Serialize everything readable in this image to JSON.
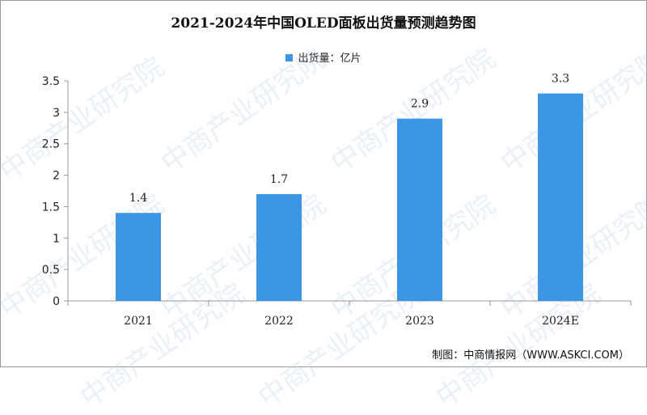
{
  "title": "2021-2024年中国OLED面板出货量预测趋势图",
  "source": "制图：中商情报网（WWW.ASKCI.COM）",
  "watermark": "中商产业研究院",
  "colors": {
    "bar": "#3d95e6",
    "axis": "#999999"
  },
  "chart_data": {
    "type": "bar",
    "title": "2021-2024年中国OLED面板出货量预测趋势图",
    "xlabel": "",
    "ylabel": "",
    "categories": [
      "2021",
      "2022",
      "2023",
      "2024E"
    ],
    "series": [
      {
        "name": "出货量：亿片",
        "values": [
          1.4,
          1.7,
          2.9,
          3.3
        ]
      }
    ],
    "value_labels": [
      "1.4",
      "1.7",
      "2.9",
      "3.3"
    ],
    "ylim": [
      0,
      3.5
    ],
    "yticks": [
      "0",
      "0.5",
      "1",
      "1.5",
      "2",
      "2.5",
      "3",
      "3.5"
    ],
    "grid": false,
    "legend_position": "top-center"
  }
}
